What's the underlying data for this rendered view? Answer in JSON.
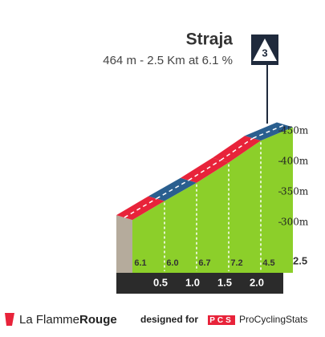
{
  "header": {
    "title": "Straja",
    "subtitle": "464 m - 2.5 Km at 6.1 %",
    "category": "3"
  },
  "chart_data": {
    "type": "profile",
    "x": [
      0,
      0.5,
      1,
      1.5,
      2,
      2.5
    ],
    "elevation": [
      312,
      343,
      373,
      406,
      442,
      464
    ],
    "gradient": {
      "values": [
        6.1,
        6.0,
        6.7,
        7.2,
        4.5
      ],
      "value_labels": [
        "6.1",
        "6.0",
        "6.7",
        "7.2",
        "4.5"
      ]
    },
    "segment_colors": [
      "#e8233a",
      "#2a5f8f",
      "#e8233a",
      "#e8233a",
      "#2a5f8f"
    ],
    "fill_color": "#8ccf2a",
    "xlim": [
      0,
      2.5
    ],
    "xticks": [
      0.5,
      {
        "value": 1,
        "label": "1.0"
      },
      1.5,
      {
        "value": 2,
        "label": "2.0"
      },
      2.5
    ],
    "ylim": [
      220,
      470
    ],
    "yticks": [
      {
        "value": 300,
        "label": "300m"
      },
      {
        "value": 350,
        "label": "350m"
      },
      {
        "value": 400,
        "label": "400m"
      },
      {
        "value": 450,
        "label": "450m"
      }
    ]
  },
  "footer": {
    "brand_light": "La Flamme",
    "brand_bold": "Rouge",
    "designed": "designed for",
    "pcs": "PCS",
    "pcs_name": "ProCyclingStats"
  }
}
